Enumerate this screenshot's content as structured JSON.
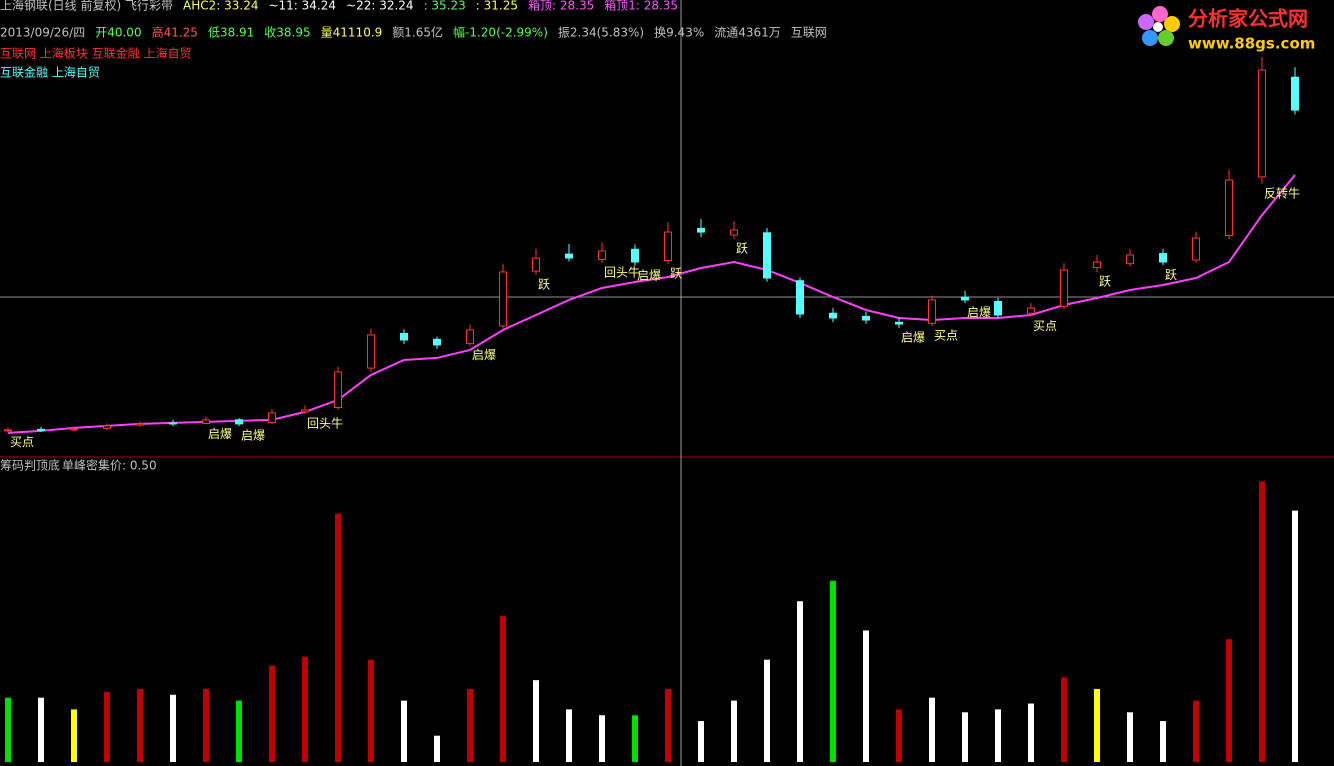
{
  "header": {
    "line1": [
      {
        "text": "上海钢联(日线 前复权) 飞行彩带",
        "color": "#c0c0c0"
      },
      {
        "text": "AHC2: 33.24",
        "color": "#ffff54"
      },
      {
        "text": "~11: 34.24",
        "color": "#ffffff"
      },
      {
        "text": "~22: 32.24",
        "color": "#ffffff"
      },
      {
        "text": ": 35.23",
        "color": "#54ff54"
      },
      {
        "text": ": 31.25",
        "color": "#ffff54"
      },
      {
        "text": "箱顶: 28.35",
        "color": "#ff54ff"
      },
      {
        "text": "箱顶1: 28.35",
        "color": "#ff54ff"
      }
    ],
    "line2": [
      {
        "text": "2013/09/26/四",
        "color": "#c0c0c0"
      },
      {
        "text": "开40.00",
        "color": "#54ff54"
      },
      {
        "text": "高41.25",
        "color": "#ff5454"
      },
      {
        "text": "低38.91",
        "color": "#54ff54"
      },
      {
        "text": "收38.95",
        "color": "#54ff54"
      },
      {
        "text": "量41110.9",
        "color": "#ffff54"
      },
      {
        "text": "额1.65亿",
        "color": "#c0c0c0"
      },
      {
        "text": "幅-1.20(-2.99%)",
        "color": "#54ff54"
      },
      {
        "text": "振2.34(5.83%)",
        "color": "#c0c0c0"
      },
      {
        "text": "换9.43%",
        "color": "#c0c0c0"
      },
      {
        "text": "流通4361万",
        "color": "#c0c0c0"
      },
      {
        "text": "互联网",
        "color": "#c0c0c0"
      }
    ],
    "line3": "互联网 上海板块 互联金融 上海自贸",
    "line4": "互联金融 上海自贸"
  },
  "logo": {
    "name": "分析家公式网",
    "url": "www.88gs.com"
  },
  "chart_data": [
    {
      "type": "candlestick",
      "ylim": [
        9.1,
        94.7
      ],
      "open": [
        13.8,
        14.1,
        14.0,
        14.3,
        14.9,
        15.3,
        15.2,
        15.9,
        15.4,
        17.4,
        18.2,
        25.6,
        32.1,
        31.0,
        30.2,
        33.5,
        43.8,
        47.0,
        46.0,
        47.9,
        45.8,
        51.8,
        50.6,
        51.0,
        42.0,
        35.9,
        35.3,
        34.2,
        34.0,
        38.9,
        38.1,
        35.9,
        37.2,
        44.5,
        45.2,
        47.1,
        45.9,
        50.5,
        61.5,
        80.2
      ],
      "high": [
        14.5,
        14.6,
        14.7,
        15.2,
        15.6,
        15.9,
        16.5,
        16.2,
        17.9,
        18.6,
        25.9,
        33.0,
        32.9,
        31.5,
        33.8,
        45.2,
        48.0,
        48.9,
        49.2,
        48.8,
        53.0,
        53.6,
        53.2,
        51.9,
        42.6,
        36.9,
        36.2,
        35.1,
        39.2,
        40.1,
        38.8,
        37.8,
        45.3,
        46.8,
        47.9,
        48.0,
        51.2,
        62.8,
        84.0,
        82.1
      ],
      "low": [
        13.5,
        13.6,
        13.7,
        14.0,
        14.6,
        14.7,
        15.0,
        14.7,
        15.1,
        17.0,
        17.8,
        24.9,
        30.1,
        29.2,
        29.8,
        33.0,
        43.1,
        45.6,
        45.3,
        44.8,
        45.1,
        50.2,
        49.8,
        41.8,
        35.0,
        34.2,
        33.9,
        33.1,
        33.5,
        37.8,
        35.0,
        35.3,
        36.6,
        43.6,
        44.7,
        44.9,
        45.4,
        49.8,
        60.2,
        73.2
      ],
      "close": [
        14.0,
        14.0,
        14.19,
        14.75,
        15.13,
        15.13,
        15.88,
        15.13,
        17.19,
        17.75,
        24.88,
        31.82,
        30.88,
        29.95,
        32.76,
        43.64,
        46.27,
        46.27,
        47.58,
        45.52,
        51.14,
        51.14,
        51.52,
        42.51,
        35.76,
        35.01,
        34.63,
        33.88,
        38.39,
        38.39,
        35.57,
        36.89,
        44.02,
        45.52,
        46.83,
        45.52,
        50.02,
        60.9,
        81.54,
        74.03
      ],
      "ma": [
        13.44,
        13.81,
        14.37,
        14.75,
        15.13,
        15.31,
        15.5,
        15.69,
        15.88,
        17.38,
        19.63,
        24.32,
        27.13,
        27.51,
        29.01,
        32.76,
        35.57,
        38.39,
        40.64,
        41.76,
        42.7,
        44.39,
        45.52,
        44.02,
        41.58,
        38.95,
        36.51,
        35.01,
        34.63,
        35.01,
        35.01,
        35.57,
        37.45,
        38.76,
        40.26,
        41.2,
        42.51,
        45.52,
        54.33,
        61.84
      ],
      "ma_color": "#ff40ff",
      "up_color": "#ff3232",
      "down_color": "#54ffff",
      "signals": [
        "买点",
        null,
        null,
        null,
        null,
        null,
        "启爆",
        "启爆",
        null,
        "回头牛",
        null,
        null,
        null,
        null,
        "启爆",
        null,
        "跃",
        null,
        "回头牛",
        "启爆",
        "跃",
        null,
        "跃",
        null,
        null,
        null,
        null,
        "启爆",
        "买点",
        "启爆",
        null,
        "买点",
        null,
        "跃",
        null,
        "跃",
        null,
        null,
        "反转牛",
        null
      ]
    },
    {
      "type": "bar",
      "title": "筹码判顶底",
      "subtitle": "单峰密集价: 0.50",
      "ylim": [
        0,
        104
      ],
      "values": [
        22,
        22,
        18,
        24,
        25,
        23,
        25,
        21,
        33,
        36,
        85,
        35,
        21,
        9,
        25,
        50,
        28,
        18,
        16,
        16,
        25,
        14,
        21,
        35,
        55,
        62,
        45,
        18,
        22,
        17,
        18,
        20,
        29,
        25,
        17,
        14,
        21,
        42,
        96,
        86
      ],
      "colors": [
        "#00e000",
        "#ffffff",
        "#ffff00",
        "#c00000",
        "#c00000",
        "#ffffff",
        "#c00000",
        "#00e000",
        "#c00000",
        "#c00000",
        "#c00000",
        "#c00000",
        "#ffffff",
        "#ffffff",
        "#c00000",
        "#c00000",
        "#ffffff",
        "#ffffff",
        "#ffffff",
        "#00e000",
        "#c00000",
        "#ffffff",
        "#ffffff",
        "#ffffff",
        "#ffffff",
        "#00e000",
        "#ffffff",
        "#c00000",
        "#ffffff",
        "#ffffff",
        "#ffffff",
        "#ffffff",
        "#c00000",
        "#ffff00",
        "#ffffff",
        "#ffffff",
        "#c00000",
        "#c00000",
        "#c00000",
        "#ffffff"
      ]
    }
  ]
}
